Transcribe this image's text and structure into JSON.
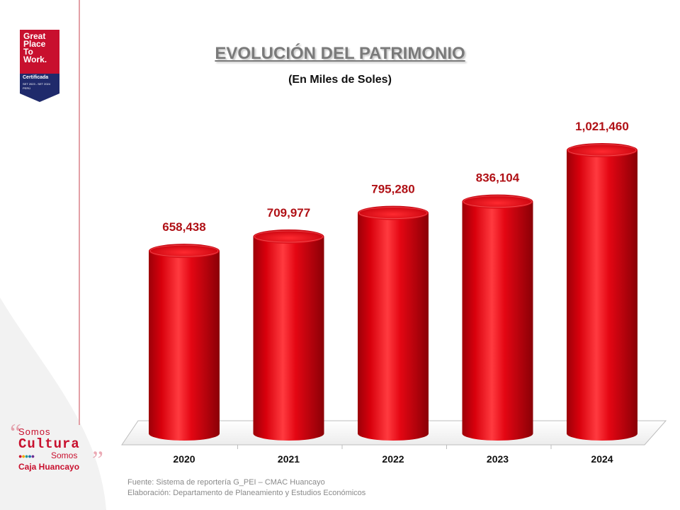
{
  "title": "EVOLUCIÓN DEL PATRIMONIO",
  "subtitle": "(En Miles de Soles)",
  "badge": {
    "line1": "Great",
    "line2": "Place",
    "line3": "To",
    "line4": "Work.",
    "certificada": "Certificada",
    "period": "SET 2023 - SET 2024",
    "country": "PERÚ"
  },
  "brand": {
    "somos1": "Somos",
    "cultura": "Cultura",
    "somos2": "Somos",
    "caja": "Caja Huancayo"
  },
  "footer": {
    "fuente": "Fuente: Sistema de reportería G_PEI – CMAC Huancayo",
    "elaboracion": "Elaboración: Departamento de Planeamiento y Estudios Económicos"
  },
  "colors": {
    "bar": "#e40613",
    "bar_dark": "#9c0008",
    "label": "#b01116",
    "badge": "#c8102e"
  },
  "chart_data": {
    "type": "bar",
    "categories": [
      "2020",
      "2021",
      "2022",
      "2023",
      "2024"
    ],
    "values": [
      658438,
      709977,
      795280,
      836104,
      1021460
    ],
    "value_labels": [
      "658,438",
      "709,977",
      "795,280",
      "836,104",
      "1,021,460"
    ],
    "title": "EVOLUCIÓN DEL PATRIMONIO",
    "subtitle": "(En Miles de Soles)",
    "xlabel": "",
    "ylabel": "",
    "grid": false,
    "legend": "none"
  }
}
